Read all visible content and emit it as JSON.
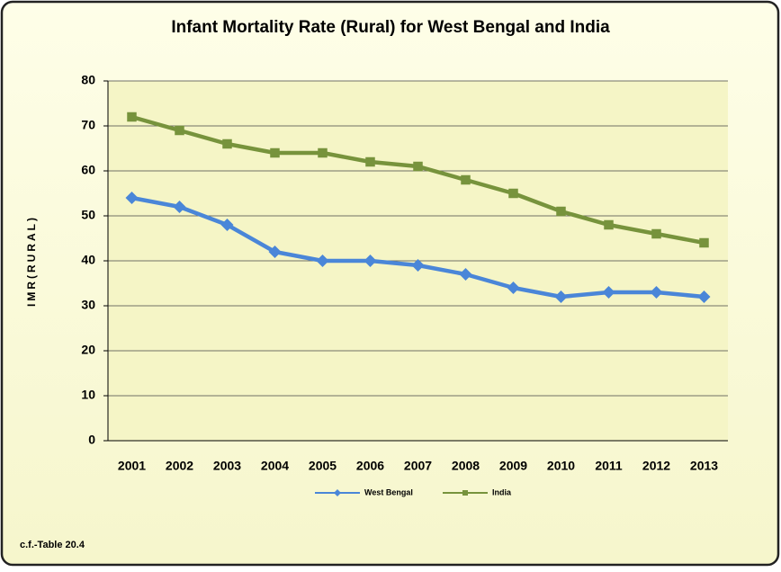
{
  "chart_data": {
    "type": "line",
    "title": "Infant Mortality Rate (Rural) for West Bengal and India",
    "y_label": "IMR(RURAL)",
    "footnote": "c.f.-Table 20.4",
    "categories": [
      "2001",
      "2002",
      "2003",
      "2004",
      "2005",
      "2006",
      "2007",
      "2008",
      "2009",
      "2010",
      "2011",
      "2012",
      "2013"
    ],
    "series": [
      {
        "name": "West Bengal",
        "color": "#4a86d8",
        "marker": "diamond",
        "values": [
          54,
          52,
          48,
          42,
          40,
          40,
          39,
          37,
          34,
          32,
          33,
          33,
          32
        ]
      },
      {
        "name": "India",
        "color": "#77933c",
        "marker": "square",
        "values": [
          72,
          69,
          66,
          64,
          64,
          62,
          61,
          58,
          55,
          51,
          48,
          46,
          44
        ]
      }
    ],
    "ylim": [
      0,
      80
    ],
    "yticks": [
      0,
      10,
      20,
      30,
      40,
      50,
      60,
      70,
      80
    ],
    "grid": true,
    "legend": "bottom"
  }
}
